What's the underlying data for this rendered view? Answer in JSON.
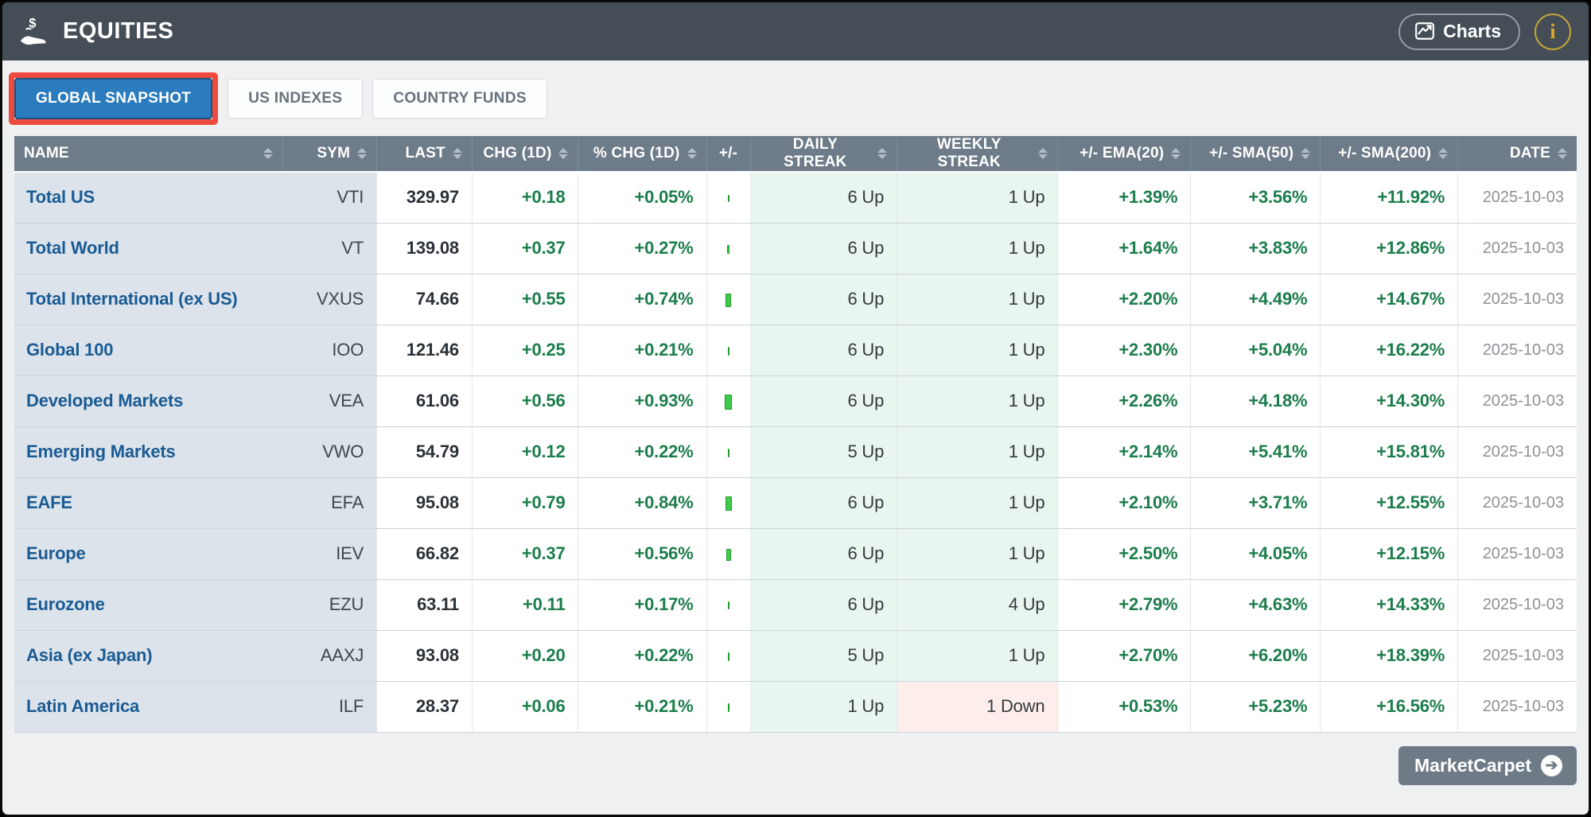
{
  "header": {
    "title": "EQUITIES",
    "charts_button_label": "Charts",
    "info_button_label": "i"
  },
  "tabs": [
    {
      "label": "GLOBAL SNAPSHOT",
      "active": true,
      "annotated": true
    },
    {
      "label": "US INDEXES",
      "active": false,
      "annotated": false
    },
    {
      "label": "COUNTRY FUNDS",
      "active": false,
      "annotated": false
    }
  ],
  "table": {
    "columns": [
      {
        "key": "name",
        "label": "NAME",
        "sortable": true
      },
      {
        "key": "sym",
        "label": "SYM",
        "sortable": true
      },
      {
        "key": "last",
        "label": "LAST",
        "sortable": true
      },
      {
        "key": "chg",
        "label": "CHG (1D)",
        "sortable": true
      },
      {
        "key": "pct",
        "label": "% CHG (1D)",
        "sortable": true
      },
      {
        "key": "bar",
        "label": "+/-",
        "sortable": false
      },
      {
        "key": "daily",
        "label": "DAILY STREAK",
        "sortable": true
      },
      {
        "key": "weekly",
        "label": "WEEKLY STREAK",
        "sortable": true
      },
      {
        "key": "ema",
        "label": "+/- EMA(20)",
        "sortable": true
      },
      {
        "key": "sma50",
        "label": "+/- SMA(50)",
        "sortable": true
      },
      {
        "key": "sma200",
        "label": "+/- SMA(200)",
        "sortable": true
      },
      {
        "key": "date",
        "label": "DATE",
        "sortable": true
      }
    ],
    "rows": [
      {
        "name": "Total US",
        "sym": "VTI",
        "last": "329.97",
        "chg": "+0.18",
        "pct_chg": "+0.05%",
        "pct_value": 0.05,
        "daily_streak": "6 Up",
        "weekly_streak": "1 Up",
        "weekly_down": false,
        "ema20": "+1.39%",
        "sma50": "+3.56%",
        "sma200": "+11.92%",
        "date": "2025-10-03"
      },
      {
        "name": "Total World",
        "sym": "VT",
        "last": "139.08",
        "chg": "+0.37",
        "pct_chg": "+0.27%",
        "pct_value": 0.27,
        "daily_streak": "6 Up",
        "weekly_streak": "1 Up",
        "weekly_down": false,
        "ema20": "+1.64%",
        "sma50": "+3.83%",
        "sma200": "+12.86%",
        "date": "2025-10-03"
      },
      {
        "name": "Total International (ex US)",
        "sym": "VXUS",
        "last": "74.66",
        "chg": "+0.55",
        "pct_chg": "+0.74%",
        "pct_value": 0.74,
        "daily_streak": "6 Up",
        "weekly_streak": "1 Up",
        "weekly_down": false,
        "ema20": "+2.20%",
        "sma50": "+4.49%",
        "sma200": "+14.67%",
        "date": "2025-10-03"
      },
      {
        "name": "Global 100",
        "sym": "IOO",
        "last": "121.46",
        "chg": "+0.25",
        "pct_chg": "+0.21%",
        "pct_value": 0.21,
        "daily_streak": "6 Up",
        "weekly_streak": "1 Up",
        "weekly_down": false,
        "ema20": "+2.30%",
        "sma50": "+5.04%",
        "sma200": "+16.22%",
        "date": "2025-10-03"
      },
      {
        "name": "Developed Markets",
        "sym": "VEA",
        "last": "61.06",
        "chg": "+0.56",
        "pct_chg": "+0.93%",
        "pct_value": 0.93,
        "daily_streak": "6 Up",
        "weekly_streak": "1 Up",
        "weekly_down": false,
        "ema20": "+2.26%",
        "sma50": "+4.18%",
        "sma200": "+14.30%",
        "date": "2025-10-03"
      },
      {
        "name": "Emerging Markets",
        "sym": "VWO",
        "last": "54.79",
        "chg": "+0.12",
        "pct_chg": "+0.22%",
        "pct_value": 0.22,
        "daily_streak": "5 Up",
        "weekly_streak": "1 Up",
        "weekly_down": false,
        "ema20": "+2.14%",
        "sma50": "+5.41%",
        "sma200": "+15.81%",
        "date": "2025-10-03"
      },
      {
        "name": "EAFE",
        "sym": "EFA",
        "last": "95.08",
        "chg": "+0.79",
        "pct_chg": "+0.84%",
        "pct_value": 0.84,
        "daily_streak": "6 Up",
        "weekly_streak": "1 Up",
        "weekly_down": false,
        "ema20": "+2.10%",
        "sma50": "+3.71%",
        "sma200": "+12.55%",
        "date": "2025-10-03"
      },
      {
        "name": "Europe",
        "sym": "IEV",
        "last": "66.82",
        "chg": "+0.37",
        "pct_chg": "+0.56%",
        "pct_value": 0.56,
        "daily_streak": "6 Up",
        "weekly_streak": "1 Up",
        "weekly_down": false,
        "ema20": "+2.50%",
        "sma50": "+4.05%",
        "sma200": "+12.15%",
        "date": "2025-10-03"
      },
      {
        "name": "Eurozone",
        "sym": "EZU",
        "last": "63.11",
        "chg": "+0.11",
        "pct_chg": "+0.17%",
        "pct_value": 0.17,
        "daily_streak": "6 Up",
        "weekly_streak": "4 Up",
        "weekly_down": false,
        "ema20": "+2.79%",
        "sma50": "+4.63%",
        "sma200": "+14.33%",
        "date": "2025-10-03"
      },
      {
        "name": "Asia (ex Japan)",
        "sym": "AAXJ",
        "last": "93.08",
        "chg": "+0.20",
        "pct_chg": "+0.22%",
        "pct_value": 0.22,
        "daily_streak": "5 Up",
        "weekly_streak": "1 Up",
        "weekly_down": false,
        "ema20": "+2.70%",
        "sma50": "+6.20%",
        "sma200": "+18.39%",
        "date": "2025-10-03"
      },
      {
        "name": "Latin America",
        "sym": "ILF",
        "last": "28.37",
        "chg": "+0.06",
        "pct_chg": "+0.21%",
        "pct_value": 0.21,
        "daily_streak": "1 Up",
        "weekly_streak": "1 Down",
        "weekly_down": true,
        "ema20": "+0.53%",
        "sma50": "+5.23%",
        "sma200": "+16.56%",
        "date": "2025-10-03"
      }
    ]
  },
  "footer": {
    "marketcarpet_button_label": "MarketCarpet"
  },
  "colors": {
    "appbar_bg": "#454d56",
    "active_tab_blue": "#2b7cbe",
    "annotation_red": "#ee4a3d",
    "positive_green": "#1b7d4b",
    "bar_green": "#3fcb49",
    "streak_up_bg": "#e9f6ef",
    "streak_down_bg": "#fdeeeb",
    "name_cell_bg": "#dce3ea",
    "table_header_bg": "#6e7b88",
    "info_gold": "#d9a929"
  }
}
